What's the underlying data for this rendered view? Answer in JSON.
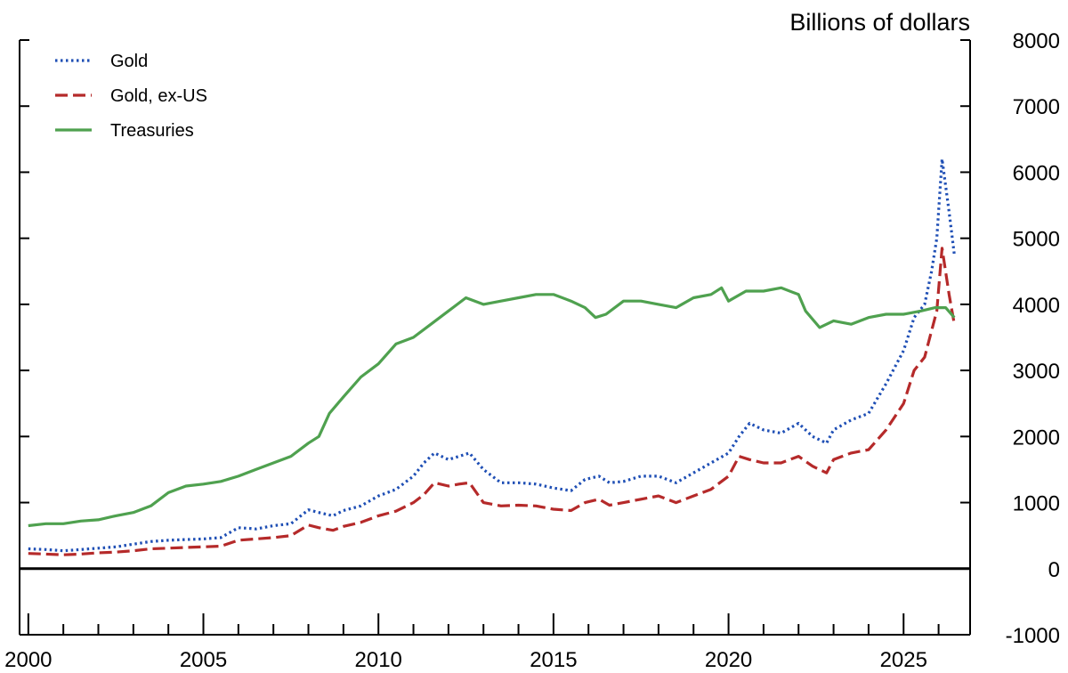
{
  "chart_data": {
    "type": "line",
    "unit_label": "Billions of dollars",
    "y_axis_side": "right",
    "ylim": [
      -1000,
      8000
    ],
    "y_ticks": [
      -1000,
      0,
      1000,
      2000,
      3000,
      4000,
      5000,
      6000,
      7000,
      8000
    ],
    "xlim": [
      1999.75,
      2026.9
    ],
    "x_ticks": [
      2000,
      2005,
      2010,
      2015,
      2020,
      2025
    ],
    "zero_line": true,
    "grid": false,
    "legend_placement": "top-left",
    "series": [
      {
        "name": "Gold",
        "color": "#1f4fb5",
        "style": "dotted",
        "x": [
          2000.0,
          2000.5,
          2001.0,
          2001.5,
          2002.0,
          2002.5,
          2003.0,
          2003.5,
          2004.0,
          2004.5,
          2005.0,
          2005.5,
          2006.0,
          2006.3,
          2006.5,
          2007.0,
          2007.5,
          2008.0,
          2008.3,
          2008.7,
          2009.0,
          2009.5,
          2010.0,
          2010.5,
          2011.0,
          2011.3,
          2011.6,
          2011.8,
          2012.0,
          2012.3,
          2012.6,
          2013.0,
          2013.5,
          2014.0,
          2014.5,
          2015.0,
          2015.5,
          2015.9,
          2016.3,
          2016.6,
          2017.0,
          2017.5,
          2018.0,
          2018.5,
          2019.0,
          2019.5,
          2020.0,
          2020.3,
          2020.6,
          2021.0,
          2021.5,
          2022.0,
          2022.4,
          2022.8,
          2023.0,
          2023.5,
          2024.0,
          2024.5,
          2025.0,
          2025.3,
          2025.6,
          2025.8,
          2025.95,
          2026.1,
          2026.3,
          2026.45
        ],
        "values": [
          300,
          290,
          270,
          290,
          310,
          330,
          370,
          410,
          430,
          440,
          450,
          470,
          620,
          610,
          600,
          650,
          680,
          890,
          850,
          800,
          880,
          950,
          1100,
          1200,
          1400,
          1600,
          1750,
          1700,
          1650,
          1700,
          1750,
          1500,
          1300,
          1300,
          1280,
          1220,
          1180,
          1350,
          1400,
          1300,
          1320,
          1400,
          1400,
          1300,
          1450,
          1600,
          1750,
          2000,
          2200,
          2100,
          2050,
          2200,
          2000,
          1900,
          2100,
          2250,
          2350,
          2800,
          3300,
          3800,
          4000,
          4500,
          5000,
          6200,
          5400,
          4750
        ]
      },
      {
        "name": "Gold, ex-US",
        "color": "#b52a2a",
        "style": "dashed",
        "x": [
          2000.0,
          2000.5,
          2001.0,
          2001.5,
          2002.0,
          2002.5,
          2003.0,
          2003.5,
          2004.0,
          2004.5,
          2005.0,
          2005.5,
          2006.0,
          2006.5,
          2007.0,
          2007.5,
          2008.0,
          2008.3,
          2008.7,
          2009.0,
          2009.5,
          2010.0,
          2010.5,
          2011.0,
          2011.3,
          2011.6,
          2012.0,
          2012.3,
          2012.6,
          2013.0,
          2013.5,
          2014.0,
          2014.5,
          2015.0,
          2015.5,
          2015.9,
          2016.3,
          2016.6,
          2017.0,
          2017.5,
          2018.0,
          2018.5,
          2019.0,
          2019.5,
          2020.0,
          2020.3,
          2020.6,
          2021.0,
          2021.5,
          2022.0,
          2022.4,
          2022.8,
          2023.0,
          2023.5,
          2024.0,
          2024.5,
          2025.0,
          2025.3,
          2025.6,
          2025.8,
          2025.95,
          2026.1,
          2026.3,
          2026.45
        ],
        "values": [
          230,
          220,
          210,
          220,
          240,
          250,
          270,
          300,
          310,
          320,
          330,
          340,
          430,
          450,
          470,
          500,
          660,
          620,
          580,
          640,
          700,
          800,
          870,
          1000,
          1120,
          1300,
          1250,
          1280,
          1300,
          1000,
          950,
          960,
          950,
          900,
          880,
          1000,
          1050,
          960,
          1000,
          1050,
          1100,
          1000,
          1100,
          1200,
          1400,
          1700,
          1650,
          1600,
          1600,
          1700,
          1550,
          1450,
          1650,
          1750,
          1800,
          2100,
          2500,
          3000,
          3200,
          3600,
          3900,
          4850,
          4150,
          3700
        ]
      },
      {
        "name": "Treasuries",
        "color": "#4fa14f",
        "style": "solid",
        "x": [
          2000.0,
          2000.5,
          2001.0,
          2001.5,
          2002.0,
          2002.5,
          2003.0,
          2003.5,
          2004.0,
          2004.5,
          2005.0,
          2005.5,
          2006.0,
          2006.5,
          2007.0,
          2007.5,
          2008.0,
          2008.3,
          2008.6,
          2009.0,
          2009.5,
          2010.0,
          2010.5,
          2011.0,
          2011.5,
          2012.0,
          2012.5,
          2013.0,
          2013.5,
          2014.0,
          2014.5,
          2015.0,
          2015.5,
          2015.9,
          2016.2,
          2016.5,
          2017.0,
          2017.5,
          2018.0,
          2018.5,
          2019.0,
          2019.5,
          2019.8,
          2020.0,
          2020.5,
          2021.0,
          2021.5,
          2022.0,
          2022.2,
          2022.6,
          2023.0,
          2023.5,
          2024.0,
          2024.5,
          2025.0,
          2025.5,
          2025.9,
          2026.2,
          2026.45
        ],
        "values": [
          650,
          680,
          680,
          720,
          740,
          800,
          850,
          950,
          1150,
          1250,
          1280,
          1320,
          1400,
          1500,
          1600,
          1700,
          1900,
          2000,
          2350,
          2600,
          2900,
          3100,
          3400,
          3500,
          3700,
          3900,
          4100,
          4000,
          4050,
          4100,
          4150,
          4150,
          4050,
          3950,
          3800,
          3850,
          4050,
          4050,
          4000,
          3950,
          4100,
          4150,
          4250,
          4050,
          4200,
          4200,
          4250,
          4150,
          3900,
          3650,
          3750,
          3700,
          3800,
          3850,
          3850,
          3900,
          3950,
          3950,
          3800
        ]
      }
    ]
  }
}
